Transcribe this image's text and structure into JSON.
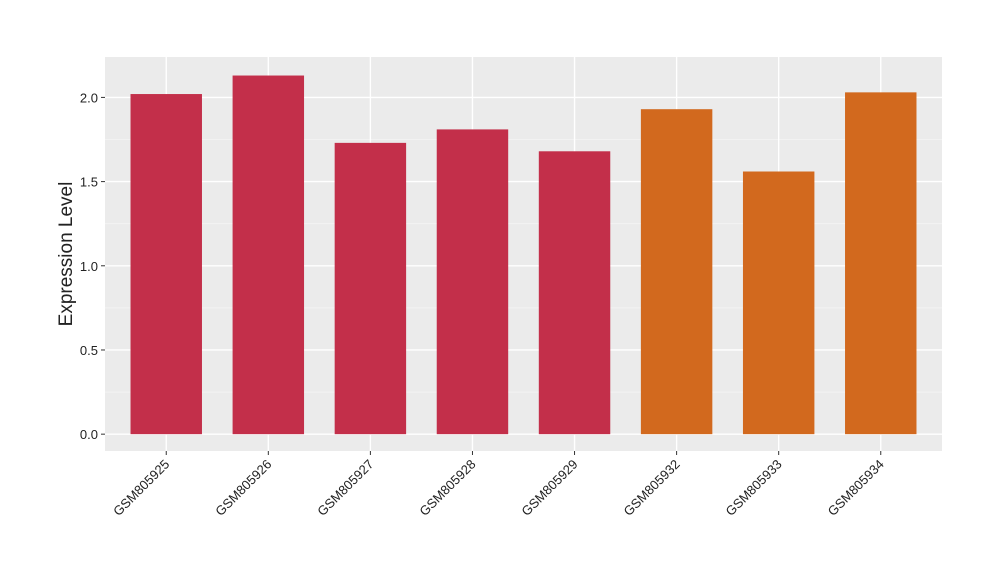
{
  "chart_data": {
    "type": "bar",
    "y_label": "Expression Level",
    "categories": [
      "GSM805925",
      "GSM805926",
      "GSM805927",
      "GSM805928",
      "GSM805929",
      "GSM805932",
      "GSM805933",
      "GSM805934"
    ],
    "values": [
      2.02,
      2.13,
      1.73,
      1.81,
      1.68,
      1.93,
      1.56,
      2.03
    ],
    "colors": [
      "#c32f4a",
      "#c32f4a",
      "#c32f4a",
      "#c32f4a",
      "#c32f4a",
      "#d2691e",
      "#d2691e",
      "#d2691e"
    ],
    "ylim": [
      -0.1,
      2.24
    ],
    "yticks": [
      {
        "value": 0,
        "label": "0.0"
      },
      0.5,
      {
        "value": 1,
        "label": "1.0"
      },
      1.5,
      {
        "value": 2,
        "label": "2.0"
      }
    ],
    "grid": true
  }
}
